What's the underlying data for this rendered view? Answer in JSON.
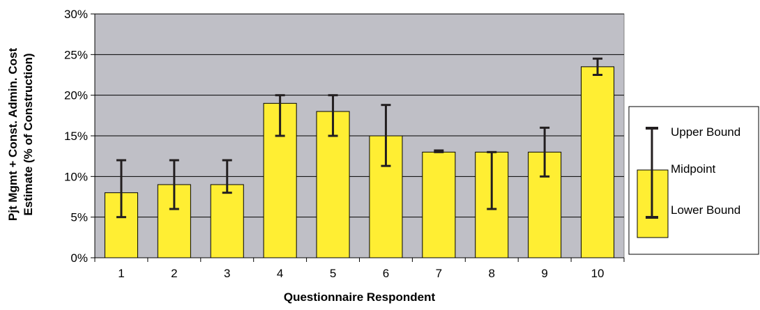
{
  "chart_data": {
    "type": "bar",
    "categories": [
      "1",
      "2",
      "3",
      "4",
      "5",
      "6",
      "7",
      "8",
      "9",
      "10"
    ],
    "values": [
      8,
      9,
      9,
      19,
      18,
      15,
      13,
      13,
      13,
      23.5
    ],
    "lower_bound": [
      5,
      6,
      8,
      15,
      15,
      11.3,
      13,
      6,
      10,
      22.5
    ],
    "upper_bound": [
      12,
      12,
      12,
      20,
      20,
      18.8,
      13.2,
      13,
      16,
      24.5
    ],
    "title": "",
    "xlabel": "Questionnaire Respondent",
    "ylabel_line1": "Pjt Mgmt + Const. Admin. Cost",
    "ylabel_line2": "Estimate (% of Construction)",
    "ylim": [
      0,
      30
    ],
    "yticks": [
      "0%",
      "5%",
      "10%",
      "15%",
      "20%",
      "25%",
      "30%"
    ],
    "grid": "horizontal",
    "legend": {
      "placement": "right",
      "upper": "Upper Bound",
      "mid": "Midpoint",
      "lower": "Lower Bound"
    },
    "colors": {
      "bar": "#FFEE33",
      "bar_edge": "#000000",
      "plot_bg": "#BFBFC6",
      "error_bar": "#231F20"
    }
  }
}
